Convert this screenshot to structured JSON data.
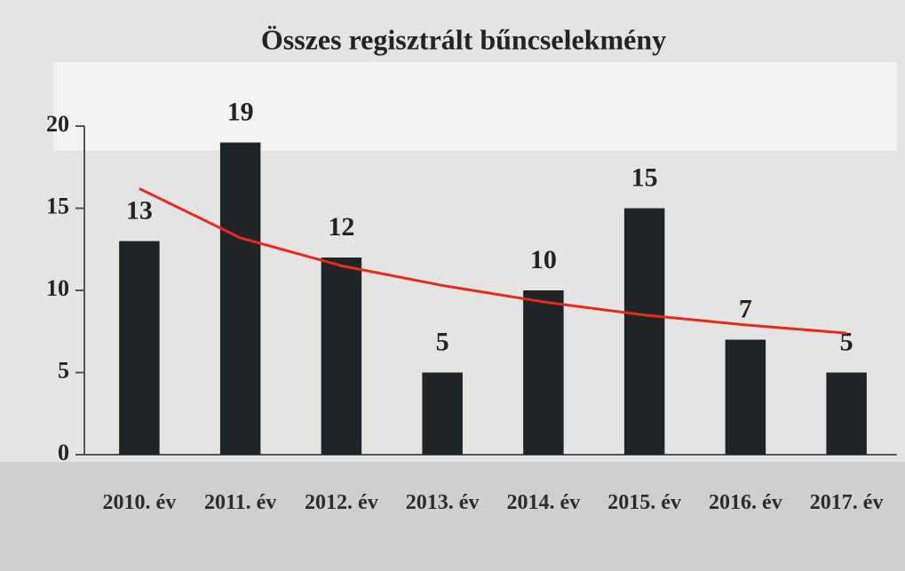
{
  "chart_data": {
    "type": "bar",
    "title": "Összes regisztrált bűncselekmény",
    "categories": [
      "2010. év",
      "2011. év",
      "2012. év",
      "2013. év",
      "2014. év",
      "2015. év",
      "2016. év",
      "2017. év"
    ],
    "values": [
      13,
      19,
      12,
      5,
      10,
      15,
      7,
      5
    ],
    "color": "#1f2427",
    "trendline": {
      "color": "#e62a1e",
      "values": [
        16.2,
        13.2,
        11.5,
        10.3,
        9.3,
        8.5,
        7.9,
        7.4
      ]
    },
    "ylim": [
      0,
      20
    ],
    "yticks": [
      0,
      5,
      10,
      15,
      20
    ],
    "grid": false
  }
}
